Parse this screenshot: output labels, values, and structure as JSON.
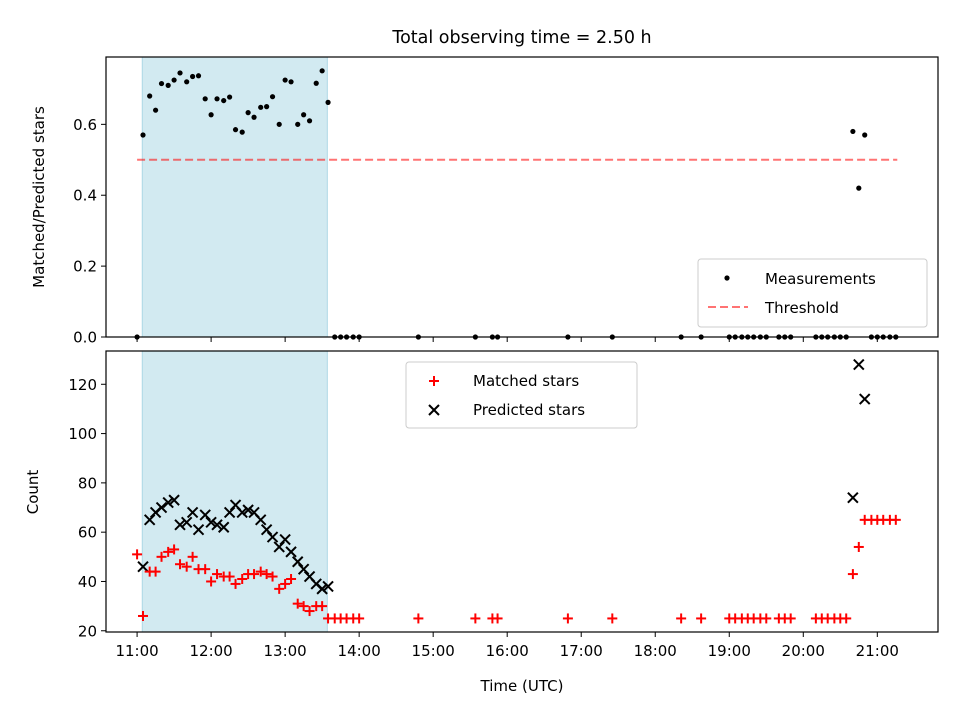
{
  "figure": {
    "title": "Total observing time = 2.50 h",
    "xlabel": "Time (UTC)"
  },
  "colors": {
    "window": "#add8e6",
    "threshold": "#ff0000",
    "matched": "#ff0000",
    "predicted": "#000000",
    "measurement": "#000000"
  },
  "chart_data": [
    {
      "type": "scatter",
      "panel": "top",
      "title": "Total observing time = 2.50 h",
      "xlabel": "",
      "ylabel": "Matched/Predicted stars",
      "x_unit": "hours UTC",
      "xlim": [
        10.58,
        21.82
      ],
      "ylim": [
        0,
        0.79
      ],
      "yticks": [
        0.0,
        0.2,
        0.4,
        0.6
      ],
      "ytick_labels": [
        "0.0",
        "0.2",
        "0.4",
        "0.6"
      ],
      "legend_position": "lower-right",
      "grid": false,
      "shaded_interval": {
        "from": 11.07,
        "to": 13.57
      },
      "threshold": {
        "name": "Threshold",
        "y": 0.5,
        "x_from": 11.0,
        "x_to": 21.27,
        "style": "dashed"
      },
      "series": [
        {
          "name": "Measurements",
          "marker": "dot",
          "x": [
            11.0,
            11.08,
            11.17,
            11.25,
            11.33,
            11.42,
            11.5,
            11.58,
            11.67,
            11.75,
            11.83,
            11.92,
            12.0,
            12.08,
            12.17,
            12.25,
            12.33,
            12.42,
            12.5,
            12.58,
            12.67,
            12.75,
            12.83,
            12.92,
            13.0,
            13.08,
            13.17,
            13.25,
            13.33,
            13.42,
            13.5,
            13.58,
            13.67,
            13.75,
            13.83,
            13.92,
            14.0,
            14.8,
            15.57,
            15.8,
            15.87,
            16.82,
            17.42,
            18.35,
            18.62,
            19.0,
            19.08,
            19.17,
            19.25,
            19.33,
            19.42,
            19.5,
            19.67,
            19.75,
            19.83,
            20.17,
            20.25,
            20.33,
            20.42,
            20.5,
            20.58,
            20.67,
            20.75,
            20.83,
            20.92,
            21.0,
            21.08,
            21.17,
            21.25
          ],
          "y": [
            0.0,
            0.57,
            0.68,
            0.64,
            0.715,
            0.71,
            0.725,
            0.745,
            0.72,
            0.735,
            0.737,
            0.672,
            0.627,
            0.672,
            0.667,
            0.677,
            0.585,
            0.578,
            0.633,
            0.62,
            0.648,
            0.65,
            0.678,
            0.6,
            0.725,
            0.72,
            0.6,
            0.627,
            0.61,
            0.716,
            0.751,
            0.662,
            0.0,
            0.0,
            0.0,
            0.0,
            0.0,
            0.0,
            0.0,
            0.0,
            0.0,
            0.0,
            0.0,
            0.0,
            0.0,
            0.0,
            0.0,
            0.0,
            0.0,
            0.0,
            0.0,
            0.0,
            0.0,
            0.0,
            0.0,
            0.0,
            0.0,
            0.0,
            0.0,
            0.0,
            0.0,
            0.58,
            0.42,
            0.57,
            0.0,
            0.0,
            0.0,
            0.0,
            0.0
          ]
        }
      ]
    },
    {
      "type": "scatter",
      "panel": "bottom",
      "xlabel": "Time (UTC)",
      "ylabel": "Count",
      "x_unit": "hours UTC",
      "xlim": [
        10.58,
        21.82
      ],
      "ylim": [
        19.5,
        133.5
      ],
      "xticks": [
        11,
        12,
        13,
        14,
        15,
        16,
        17,
        18,
        19,
        20,
        21
      ],
      "xtick_labels": [
        "11:00",
        "12:00",
        "13:00",
        "14:00",
        "15:00",
        "16:00",
        "17:00",
        "18:00",
        "19:00",
        "20:00",
        "21:00"
      ],
      "yticks": [
        20,
        40,
        60,
        80,
        100,
        120
      ],
      "ytick_labels": [
        "20",
        "40",
        "60",
        "80",
        "100",
        "120"
      ],
      "legend_position": "upper-center",
      "grid": false,
      "shaded_interval": {
        "from": 11.07,
        "to": 13.57
      },
      "series": [
        {
          "name": "Matched stars",
          "marker": "plus",
          "x": [
            11.0,
            11.08,
            11.17,
            11.25,
            11.33,
            11.42,
            11.5,
            11.58,
            11.67,
            11.75,
            11.83,
            11.92,
            12.0,
            12.08,
            12.17,
            12.25,
            12.33,
            12.42,
            12.5,
            12.58,
            12.67,
            12.75,
            12.83,
            12.92,
            13.0,
            13.08,
            13.17,
            13.25,
            13.33,
            13.42,
            13.5,
            13.58,
            13.67,
            13.75,
            13.83,
            13.92,
            14.0,
            14.8,
            15.57,
            15.8,
            15.87,
            16.82,
            17.42,
            18.35,
            18.62,
            19.0,
            19.08,
            19.17,
            19.25,
            19.33,
            19.42,
            19.5,
            19.67,
            19.75,
            19.83,
            20.17,
            20.25,
            20.33,
            20.42,
            20.5,
            20.58,
            20.67,
            20.75,
            20.83,
            20.92,
            21.0,
            21.08,
            21.17,
            21.25
          ],
          "y": [
            51,
            26,
            44,
            44,
            50,
            52,
            53,
            47,
            46,
            50,
            45,
            45,
            40,
            43,
            42,
            42,
            39,
            41,
            43,
            43,
            44,
            43,
            42,
            37,
            39,
            41,
            31,
            30,
            28,
            30,
            30,
            25,
            25,
            25,
            25,
            25,
            25,
            25,
            25,
            25,
            25,
            25,
            25,
            25,
            25,
            25,
            25,
            25,
            25,
            25,
            25,
            25,
            25,
            25,
            25,
            25,
            25,
            25,
            25,
            25,
            25,
            43,
            54,
            65,
            65,
            65,
            65,
            65,
            65
          ]
        },
        {
          "name": "Predicted stars",
          "marker": "x",
          "x": [
            11.08,
            11.17,
            11.25,
            11.33,
            11.42,
            11.5,
            11.58,
            11.67,
            11.75,
            11.83,
            11.92,
            12.0,
            12.08,
            12.17,
            12.25,
            12.33,
            12.42,
            12.5,
            12.58,
            12.67,
            12.75,
            12.83,
            12.92,
            13.0,
            13.08,
            13.17,
            13.25,
            13.33,
            13.42,
            13.5,
            13.58,
            20.67,
            20.75,
            20.83
          ],
          "y": [
            46,
            65,
            68,
            70,
            72,
            73,
            63,
            64,
            68,
            61,
            67,
            64,
            63,
            62,
            68,
            71,
            68,
            69,
            68,
            65,
            61,
            58,
            54,
            57,
            52,
            48,
            45,
            42,
            39,
            37,
            38,
            74,
            128,
            114
          ]
        }
      ]
    }
  ]
}
